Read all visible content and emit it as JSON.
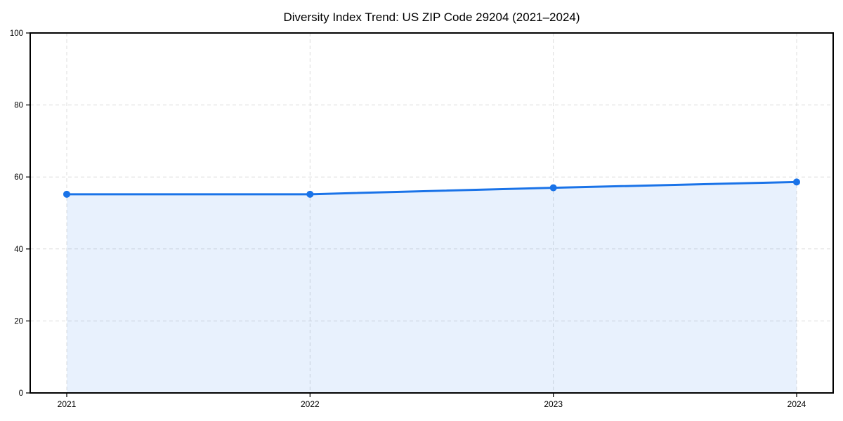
{
  "chart_data": {
    "type": "line",
    "title": "Diversity Index Trend: US ZIP Code 29204 (2021–2024)",
    "x": [
      "2021",
      "2022",
      "2023",
      "2024"
    ],
    "series": [
      {
        "name": "Diversity Index",
        "values": [
          55.2,
          55.2,
          57.0,
          58.6
        ]
      }
    ],
    "xlabel": "",
    "ylabel": "",
    "ylim": [
      0,
      100
    ],
    "yticks": [
      0,
      20,
      40,
      60,
      80,
      100
    ],
    "xtick_labels": [
      "2021",
      "2022",
      "2023",
      "2024"
    ],
    "grid": "dashed-both-axes",
    "legend_position": "none",
    "area_fill": true,
    "marker": "circle",
    "colors": {
      "line": "#1a73e8",
      "marker": "#1a73e8",
      "area_fill": "rgba(26,115,232,0.10)",
      "grid": "#dcdcdc",
      "axis_frame": "#000000",
      "tick_text": "#000000",
      "background": "#ffffff"
    }
  }
}
